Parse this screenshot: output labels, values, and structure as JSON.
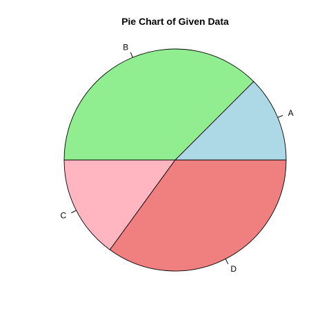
{
  "chart_data": {
    "type": "pie",
    "title": "Pie Chart of Given Data",
    "start_angle_deg": 0,
    "direction": "counterclockwise",
    "slices": [
      {
        "label": "A",
        "value": 12.5,
        "color": "#add8e6"
      },
      {
        "label": "B",
        "value": 37.5,
        "color": "#90ee90"
      },
      {
        "label": "C",
        "value": 15.0,
        "color": "#ffb6c1"
      },
      {
        "label": "D",
        "value": 35.0,
        "color": "#f08080"
      }
    ]
  }
}
